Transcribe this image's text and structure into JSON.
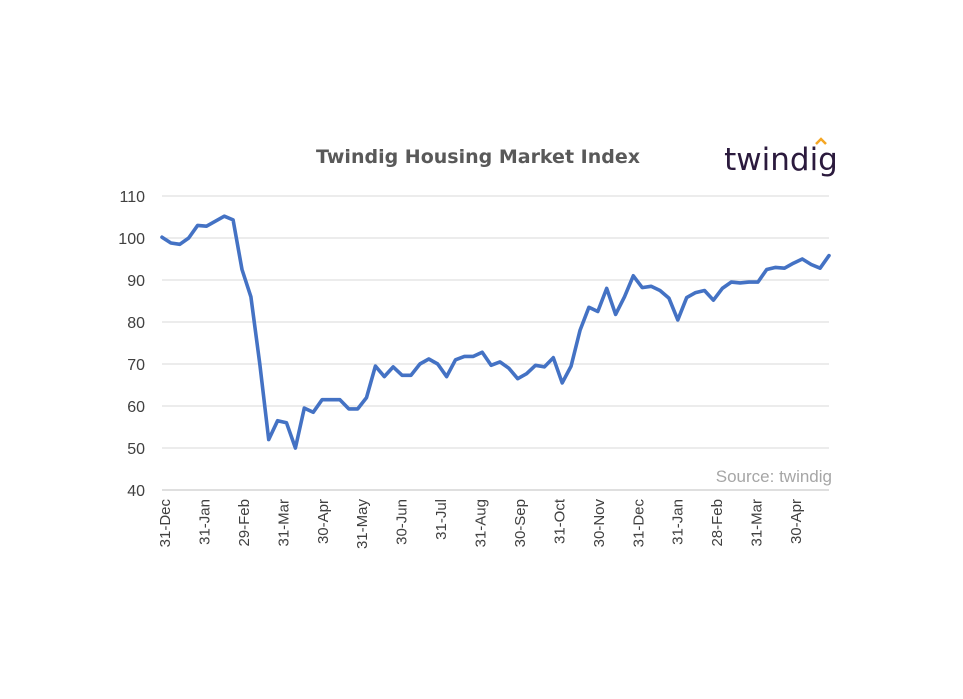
{
  "chart_data": {
    "type": "line",
    "title": "Twindig Housing Market Index",
    "source": "Source: twindig",
    "logo": "twindig",
    "xlabel": "",
    "ylabel": "",
    "ylim": [
      40,
      110
    ],
    "yticks": [
      40,
      50,
      60,
      70,
      80,
      90,
      100,
      110
    ],
    "grid": true,
    "line_color": "#4472c4",
    "grid_color": "#d9d9d9",
    "logo_accent_color": "#f5a623",
    "x_tick_labels": [
      "31-Dec",
      "31-Jan",
      "29-Feb",
      "31-Mar",
      "30-Apr",
      "31-May",
      "30-Jun",
      "31-Jul",
      "31-Aug",
      "30-Sep",
      "31-Oct",
      "30-Nov",
      "31-Dec",
      "31-Jan",
      "28-Feb",
      "31-Mar",
      "30-Apr"
    ],
    "series": [
      {
        "values": [
          100.2,
          98.8,
          98.5,
          100.0,
          103.0,
          102.8,
          104.0,
          105.2,
          104.3,
          92.5,
          86.0,
          70.0,
          52.0,
          56.5,
          56.0,
          50.0,
          59.5,
          58.5,
          61.5,
          61.5,
          61.5,
          59.3,
          59.3,
          62.0,
          69.5,
          67.0,
          69.3,
          67.3,
          67.3,
          70.0,
          71.2,
          70.0,
          67.0,
          71.0,
          71.8,
          71.8,
          72.8,
          69.7,
          70.5,
          69.0,
          66.5,
          67.7,
          69.7,
          69.3,
          71.5,
          65.5,
          69.5,
          78.0,
          83.5,
          82.5,
          88.0,
          81.8,
          86.0,
          91.0,
          88.2,
          88.5,
          87.5,
          85.7,
          80.5,
          85.8,
          87.0,
          87.5,
          85.2,
          88.0,
          89.5,
          89.3,
          89.5,
          89.5,
          92.5,
          93.0,
          92.8,
          94.0,
          95.0,
          93.7,
          92.8,
          95.8
        ]
      }
    ]
  }
}
